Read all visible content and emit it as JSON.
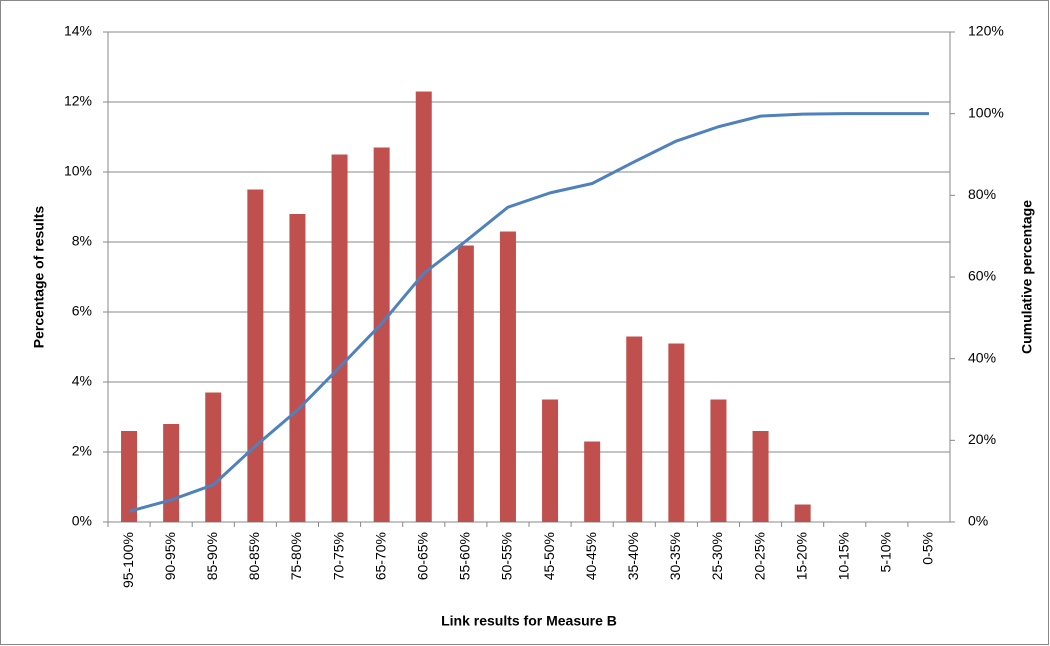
{
  "chart_data": {
    "type": "bar-line",
    "x_label": "Link results for Measure B",
    "y_label": "Percentage of results",
    "y2_label": "Cumulative percentage",
    "categories": [
      "95-100%",
      "90-95%",
      "85-90%",
      "80-85%",
      "75-80%",
      "70-75%",
      "65-70%",
      "60-65%",
      "55-60%",
      "50-55%",
      "45-50%",
      "40-45%",
      "35-40%",
      "30-35%",
      "25-30%",
      "20-25%",
      "15-20%",
      "10-15%",
      "5-10%",
      "0-5%"
    ],
    "series": [
      {
        "type": "bar",
        "color": "#c0504d",
        "values": [
          2.6,
          2.8,
          3.7,
          9.5,
          8.8,
          10.5,
          10.7,
          12.3,
          7.9,
          8.3,
          3.5,
          2.3,
          5.3,
          5.1,
          3.5,
          2.6,
          0.5,
          0,
          0,
          0
        ]
      },
      {
        "type": "line",
        "axis": "y2",
        "color": "#4f81bd",
        "values": [
          2.6,
          5.4,
          9.1,
          18.6,
          27.4,
          37.9,
          48.6,
          60.9,
          68.8,
          77.1,
          80.6,
          82.9,
          88.2,
          93.3,
          96.8,
          99.4,
          99.9,
          100,
          100,
          100
        ]
      }
    ],
    "ylim": [
      0,
      14
    ],
    "yticks": [
      {
        "value": 0,
        "label": "0%"
      },
      {
        "value": 2,
        "label": "2%"
      },
      {
        "value": 4,
        "label": "4%"
      },
      {
        "value": 6,
        "label": "6%"
      },
      {
        "value": 8,
        "label": "8%"
      },
      {
        "value": 10,
        "label": "10%"
      },
      {
        "value": 12,
        "label": "12%"
      },
      {
        "value": 14,
        "label": "14%"
      }
    ],
    "y2lim": [
      0,
      120
    ],
    "y2ticks": [
      {
        "value": 0,
        "label": "0%"
      },
      {
        "value": 20,
        "label": "20%"
      },
      {
        "value": 40,
        "label": "40%"
      },
      {
        "value": 60,
        "label": "60%"
      },
      {
        "value": 80,
        "label": "80%"
      },
      {
        "value": 100,
        "label": "100%"
      },
      {
        "value": 120,
        "label": "120%"
      }
    ],
    "grid": true
  }
}
